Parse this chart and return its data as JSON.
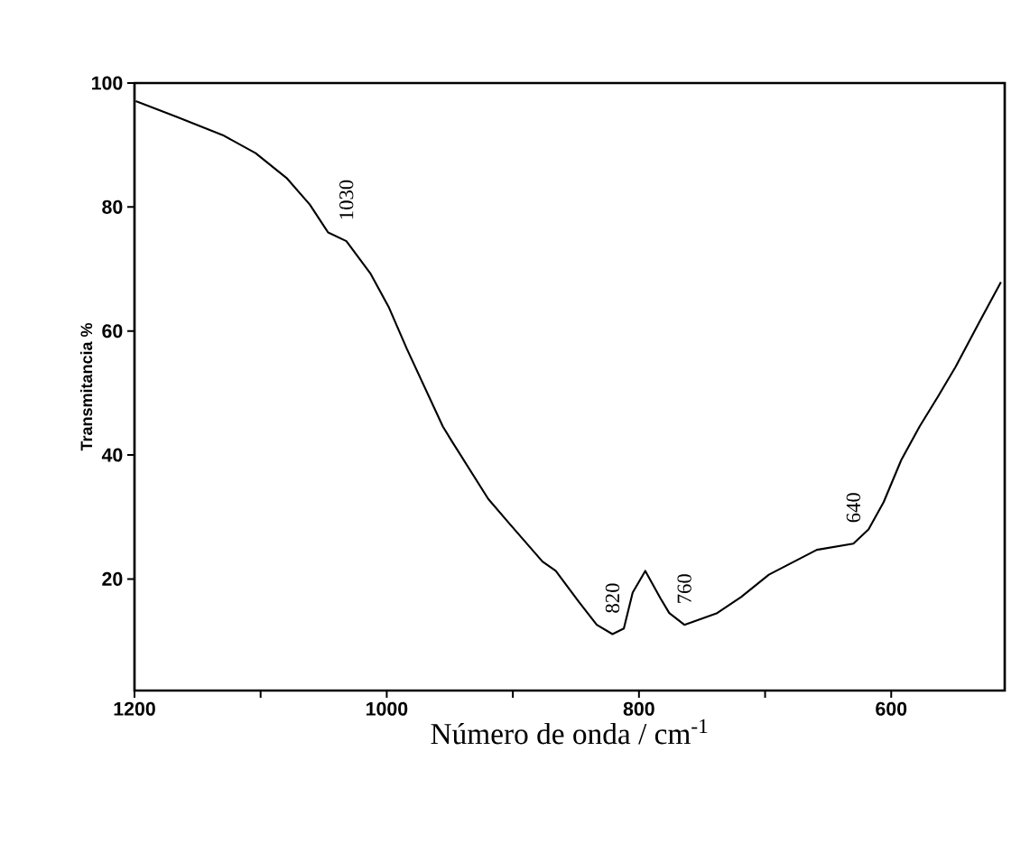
{
  "chart_data": {
    "type": "line",
    "xlabel": "Número de onda / cm$^{-1}$",
    "ylabel": "Transmitancia %",
    "xlim": [
      1200,
      510
    ],
    "ylim": [
      2,
      100
    ],
    "xticks": [
      1200,
      {
        "value": 1100,
        "label": null
      },
      1000,
      {
        "value": 900,
        "label": null
      },
      800,
      {
        "value": 700,
        "label": null
      },
      600
    ],
    "yticks": [
      20,
      40,
      60,
      80,
      100
    ],
    "grid": false,
    "marker": "none",
    "line_style": "solid",
    "series": [
      {
        "color": "#000000",
        "x": [
          1199,
          1166,
          1130,
          1104,
          1079.5,
          1061,
          1046.5,
          1032,
          1013,
          998.5,
          984,
          955.5,
          948,
          919.5,
          903,
          876.5,
          866,
          848,
          833.5,
          821,
          812,
          805,
          795,
          783,
          776,
          764,
          738,
          719,
          697,
          659,
          630,
          618,
          606,
          592,
          577.5,
          563,
          549,
          530,
          513
        ],
        "values": [
          97.1,
          94.5,
          91.6,
          88.7,
          84.7,
          80.4,
          75.9,
          74.5,
          69.3,
          63.9,
          57.1,
          44.6,
          42.1,
          32.9,
          29.0,
          22.8,
          21.3,
          16.4,
          12.6,
          11.1,
          12.0,
          17.8,
          21.3,
          16.9,
          14.5,
          12.6,
          14.5,
          17.1,
          20.7,
          24.7,
          25.7,
          28.0,
          32.4,
          39.2,
          44.6,
          49.4,
          54.2,
          61.5,
          67.9
        ]
      }
    ],
    "annotations": [
      {
        "text": "1030",
        "x": 1032,
        "y": 74.5
      },
      {
        "text": "820",
        "x": 821,
        "y": 11.1
      },
      {
        "text": "760",
        "x": 764,
        "y": 12.6
      },
      {
        "text": "640",
        "x": 630,
        "y": 25.7
      }
    ]
  }
}
